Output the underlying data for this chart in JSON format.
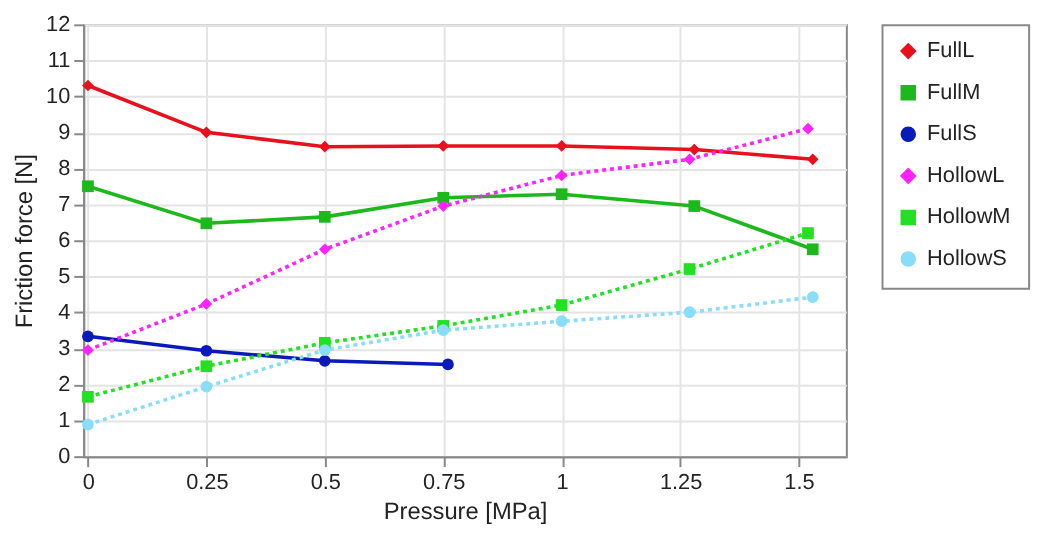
{
  "chart_data": {
    "type": "line",
    "xlabel": "Pressure [MPa]",
    "ylabel": "Friction force [N]",
    "xlim": [
      -0.01,
      1.6
    ],
    "xticks": [
      0,
      0.25,
      0.5,
      0.75,
      1,
      1.25,
      1.5
    ],
    "ylim": [
      0,
      12
    ],
    "yticks": [
      0,
      1,
      2,
      3,
      4,
      5,
      6,
      7,
      8,
      9,
      10,
      11,
      12
    ],
    "grid": true,
    "legend": "right",
    "series": [
      {
        "name": "FullL",
        "color": "#e8101c",
        "marker": "diamond",
        "line_style": "solid",
        "x": [
          0,
          0.25,
          0.5,
          0.75,
          1,
          1.28,
          1.53
        ],
        "values": [
          10.3,
          9.0,
          8.6,
          8.62,
          8.62,
          8.52,
          8.25
        ]
      },
      {
        "name": "FullM",
        "color": "#1cb81c",
        "marker": "square",
        "line_style": "solid",
        "x": [
          0,
          0.25,
          0.5,
          0.75,
          1,
          1.28,
          1.53
        ],
        "values": [
          7.5,
          6.47,
          6.65,
          7.18,
          7.28,
          6.95,
          5.75
        ]
      },
      {
        "name": "FullS",
        "color": "#0a1ab8",
        "marker": "circle",
        "line_style": "solid",
        "x": [
          0,
          0.25,
          0.5,
          0.76
        ],
        "values": [
          3.33,
          2.93,
          2.65,
          2.55
        ]
      },
      {
        "name": "HollowL",
        "color": "#ff22ff",
        "marker": "diamond",
        "line_style": "dotted",
        "x": [
          0,
          0.25,
          0.5,
          0.75,
          1,
          1.27,
          1.52
        ],
        "values": [
          2.95,
          4.23,
          5.75,
          6.95,
          7.8,
          8.25,
          9.1
        ]
      },
      {
        "name": "HollowM",
        "color": "#22e022",
        "marker": "square",
        "line_style": "dotted",
        "x": [
          0,
          0.25,
          0.5,
          0.75,
          1,
          1.27,
          1.52
        ],
        "values": [
          1.65,
          2.5,
          3.15,
          3.62,
          4.2,
          5.2,
          6.2
        ]
      },
      {
        "name": "HollowS",
        "color": "#88ddf8",
        "marker": "circle",
        "line_style": "dotted",
        "x": [
          0,
          0.25,
          0.5,
          0.75,
          1,
          1.27,
          1.53
        ],
        "values": [
          0.88,
          1.93,
          2.95,
          3.5,
          3.75,
          4.0,
          4.42
        ]
      }
    ]
  }
}
